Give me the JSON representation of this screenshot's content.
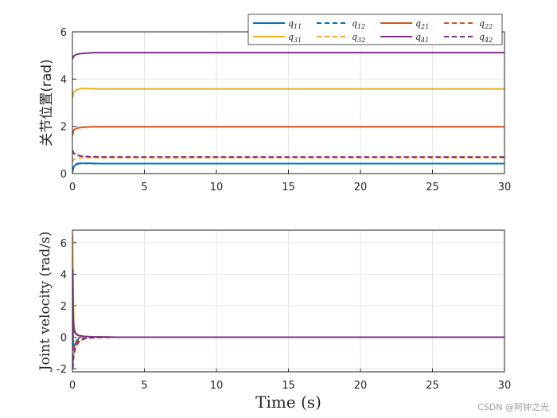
{
  "chart_data": [
    {
      "type": "line",
      "title": "",
      "xlabel": "",
      "ylabel": "关节位置(rad)",
      "xlim": [
        0,
        30
      ],
      "ylim": [
        0,
        6
      ],
      "xticks": [
        "0",
        "5",
        "10",
        "15",
        "20",
        "25",
        "30"
      ],
      "yticks": [
        "0",
        "2",
        "4",
        "6"
      ],
      "grid": true,
      "legend_position": "top-right",
      "series": [
        {
          "name": "q11",
          "sub": "11",
          "color": "#0072BD",
          "dash": "solid",
          "x": [
            0,
            0.1,
            0.3,
            0.6,
            1.0,
            1.5,
            2,
            3,
            30
          ],
          "y": [
            0.05,
            0.3,
            0.4,
            0.43,
            0.44,
            0.43,
            0.42,
            0.42,
            0.42
          ]
        },
        {
          "name": "q12",
          "sub": "12",
          "color": "#0072BD",
          "dash": "dashed",
          "x": [
            0,
            0.1,
            0.3,
            0.6,
            1.0,
            1.5,
            2,
            3,
            30
          ],
          "y": [
            0.1,
            0.35,
            0.42,
            0.44,
            0.43,
            0.42,
            0.42,
            0.42,
            0.42
          ]
        },
        {
          "name": "q21",
          "sub": "21",
          "color": "#D95319",
          "dash": "solid",
          "x": [
            0,
            0.1,
            0.3,
            0.6,
            1.0,
            1.5,
            2,
            3,
            30
          ],
          "y": [
            1.6,
            1.85,
            1.92,
            1.95,
            1.97,
            1.98,
            1.98,
            1.98,
            1.98
          ]
        },
        {
          "name": "q22",
          "sub": "22",
          "color": "#D95319",
          "dash": "dashed",
          "x": [
            0,
            0.1,
            0.3,
            0.6,
            1.0,
            1.5,
            2,
            3,
            30
          ],
          "y": [
            0.95,
            0.85,
            0.78,
            0.74,
            0.72,
            0.71,
            0.7,
            0.7,
            0.7
          ]
        },
        {
          "name": "q31",
          "sub": "31",
          "color": "#EDB120",
          "dash": "solid",
          "x": [
            0,
            0.1,
            0.3,
            0.6,
            1.0,
            1.5,
            2,
            3,
            30
          ],
          "y": [
            3.2,
            3.45,
            3.55,
            3.6,
            3.6,
            3.59,
            3.58,
            3.58,
            3.58
          ]
        },
        {
          "name": "q32",
          "sub": "32",
          "color": "#EDB120",
          "dash": "dashed",
          "x": [
            0,
            0.1,
            0.3,
            0.6,
            1.0,
            1.5,
            2,
            3,
            30
          ],
          "y": [
            0.5,
            0.6,
            0.64,
            0.66,
            0.67,
            0.67,
            0.67,
            0.67,
            0.67
          ]
        },
        {
          "name": "q41",
          "sub": "41",
          "color": "#7E2F8E",
          "dash": "solid",
          "x": [
            0,
            0.1,
            0.3,
            0.6,
            1.0,
            1.5,
            2,
            3,
            30
          ],
          "y": [
            4.85,
            4.98,
            5.05,
            5.08,
            5.1,
            5.12,
            5.12,
            5.12,
            5.12
          ]
        },
        {
          "name": "q42",
          "sub": "42",
          "color": "#7E2F8E",
          "dash": "dashed",
          "x": [
            0,
            0.1,
            0.3,
            0.6,
            1.0,
            1.5,
            2,
            3,
            30
          ],
          "y": [
            1.0,
            0.85,
            0.78,
            0.74,
            0.72,
            0.71,
            0.7,
            0.7,
            0.7
          ]
        }
      ]
    },
    {
      "type": "line",
      "title": "",
      "xlabel": "Time (s)",
      "ylabel": "Joint velocity (rad/s)",
      "xlim": [
        0,
        30
      ],
      "ylim": [
        -2.2,
        6.8
      ],
      "xticks": [
        "0",
        "5",
        "10",
        "15",
        "20",
        "25",
        "30"
      ],
      "yticks": [
        "-2",
        "0",
        "2",
        "4",
        "6"
      ],
      "grid": true,
      "series": [
        {
          "name": "",
          "color": "#0072BD",
          "dash": "solid",
          "x": [
            0,
            0.02,
            0.06,
            0.15,
            0.3,
            0.6,
            1.0,
            2,
            3,
            30
          ],
          "y": [
            0,
            1.2,
            -0.8,
            -0.5,
            -0.2,
            0.05,
            0.03,
            0.01,
            0,
            0
          ]
        },
        {
          "name": "",
          "color": "#0072BD",
          "dash": "dashed",
          "x": [
            0,
            0.03,
            0.1,
            0.3,
            0.6,
            1.0,
            2,
            3,
            30
          ],
          "y": [
            0,
            -1.5,
            -1.0,
            -0.5,
            -0.15,
            -0.05,
            -0.01,
            0,
            0
          ]
        },
        {
          "name": "",
          "color": "#D95319",
          "dash": "solid",
          "x": [
            0,
            0.02,
            0.06,
            0.15,
            0.3,
            0.6,
            1.0,
            2,
            3,
            30
          ],
          "y": [
            0,
            2.5,
            0.8,
            0.3,
            0.15,
            0.05,
            0.02,
            0.01,
            0,
            0
          ]
        },
        {
          "name": "",
          "color": "#D95319",
          "dash": "dashed",
          "x": [
            0,
            0.03,
            0.1,
            0.3,
            0.6,
            1.0,
            2,
            3,
            30
          ],
          "y": [
            0,
            -1.2,
            -0.7,
            -0.3,
            -0.1,
            -0.04,
            -0.01,
            0,
            0
          ]
        },
        {
          "name": "",
          "color": "#EDB120",
          "dash": "solid",
          "x": [
            0,
            0.02,
            0.05,
            0.1,
            0.2,
            0.4,
            0.8,
            1.5,
            3,
            30
          ],
          "y": [
            0,
            6.5,
            3.0,
            0.8,
            0.3,
            0.1,
            0.03,
            0.01,
            0,
            0
          ]
        },
        {
          "name": "",
          "color": "#EDB120",
          "dash": "dashed",
          "x": [
            0,
            0.03,
            0.1,
            0.3,
            0.6,
            1.0,
            2,
            3,
            30
          ],
          "y": [
            0,
            -1.8,
            -1.1,
            -0.5,
            -0.2,
            -0.05,
            -0.01,
            0,
            0
          ]
        },
        {
          "name": "",
          "color": "#7E2F8E",
          "dash": "solid",
          "x": [
            0,
            0.02,
            0.05,
            0.1,
            0.2,
            0.4,
            0.8,
            1.5,
            3,
            30
          ],
          "y": [
            0,
            4.3,
            1.5,
            0.5,
            0.25,
            0.12,
            0.05,
            0.02,
            0,
            0
          ]
        },
        {
          "name": "",
          "color": "#7E2F8E",
          "dash": "dashed",
          "x": [
            0,
            0.03,
            0.08,
            0.2,
            0.5,
            1.0,
            2,
            3,
            30
          ],
          "y": [
            0,
            -2.0,
            -1.3,
            -0.6,
            -0.2,
            -0.05,
            -0.01,
            0,
            0
          ]
        }
      ]
    }
  ],
  "watermark": "CSDN @阿钟之光"
}
